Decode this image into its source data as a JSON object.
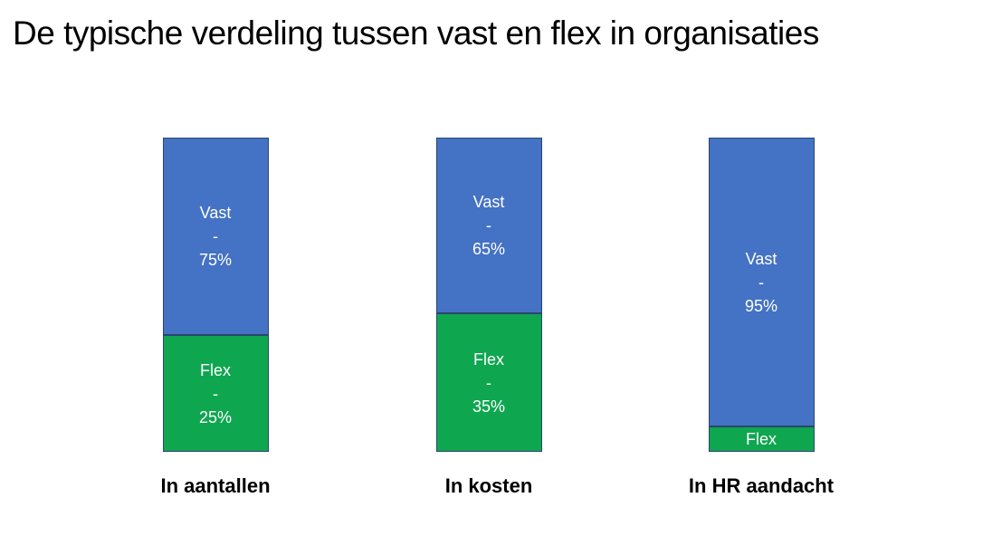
{
  "title": "De typische verdeling tussen vast en flex in organisaties",
  "colors": {
    "vast_fill": "#4472C4",
    "flex_fill": "#0FA650",
    "bar_border": "#2B4570",
    "bar_text": "#FFFFFF",
    "title_text": "#000000",
    "caption_text": "#000000",
    "background": "#FFFFFF"
  },
  "chart_data": {
    "type": "bar",
    "stacked": true,
    "orientation": "vertical",
    "title": "De typische verdeling tussen vast en flex in organisaties",
    "categories": [
      "In aantallen",
      "In kosten",
      "In HR aandacht"
    ],
    "series": [
      {
        "name": "Vast",
        "values": [
          75,
          65,
          95
        ],
        "color": "#4472C4"
      },
      {
        "name": "Flex",
        "values": [
          25,
          35,
          5
        ],
        "color": "#0FA650"
      }
    ],
    "value_unit": "%",
    "legend": "none",
    "axes": "none",
    "grid": false,
    "labels_on_bars": true,
    "notes": "Each segment is labeled inside the bar as 'Name - NN%'. The Flex segment of 'In HR aandacht' shows only the word 'Flex' with no percentage. Drawn segment heights are stylized and not exactly proportional to the stated percentages."
  },
  "columns": [
    {
      "caption": "In aantallen",
      "vast": {
        "label": "Vast",
        "dash": "-",
        "value": "75%"
      },
      "flex": {
        "label": "Flex",
        "dash": "-",
        "value": "25%"
      }
    },
    {
      "caption": "In kosten",
      "vast": {
        "label": "Vast",
        "dash": "-",
        "value": "65%"
      },
      "flex": {
        "label": "Flex",
        "dash": "-",
        "value": "35%"
      }
    },
    {
      "caption": "In HR aandacht",
      "vast": {
        "label": "Vast",
        "dash": "-",
        "value": "95%"
      },
      "flex": {
        "label": "Flex"
      }
    }
  ]
}
